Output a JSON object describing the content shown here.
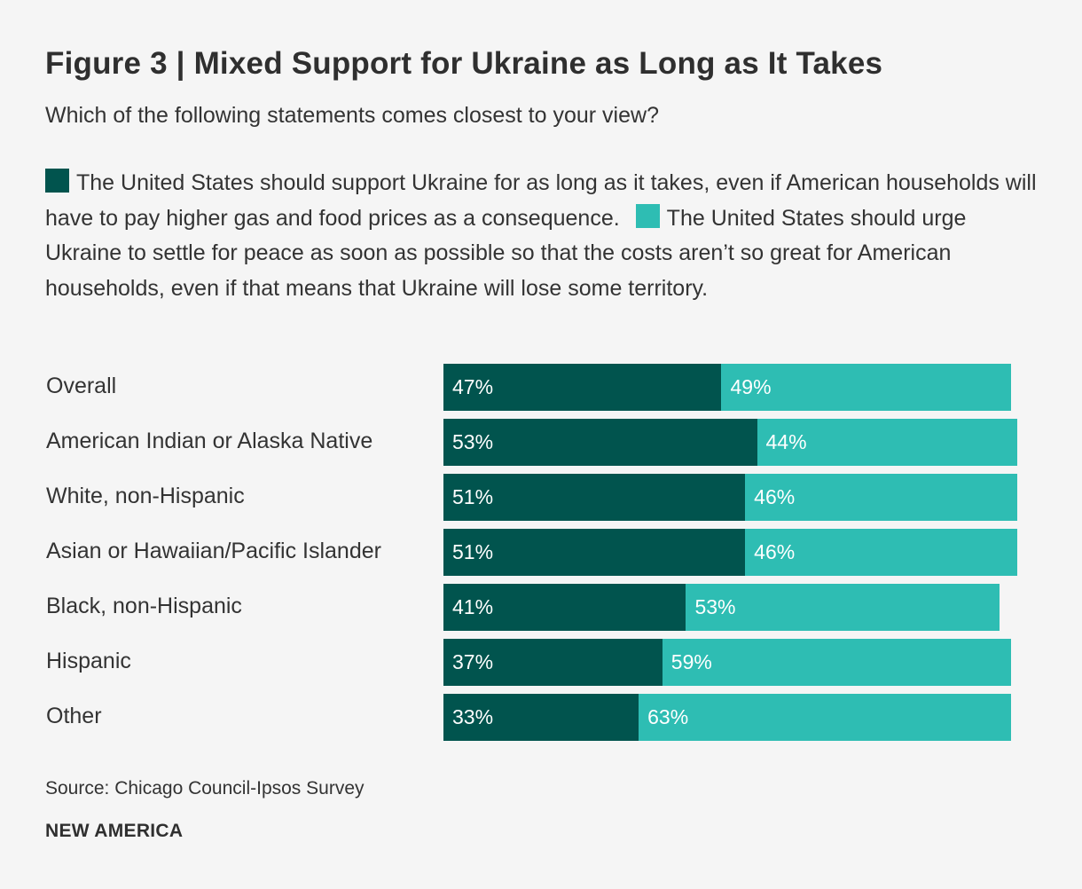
{
  "header": {
    "title": "Figure 3 | Mixed Support for Ukraine as Long as It Takes",
    "subtitle": "Which of the following statements comes closest to your view?"
  },
  "footer": {
    "source": "Source: Chicago Council-Ipsos Survey",
    "brand": "NEW AMERICA"
  },
  "colors": {
    "dark": "#01544e",
    "light": "#2ebdb3"
  },
  "chart_data": {
    "type": "bar",
    "orientation": "horizontal",
    "stacked": true,
    "title": "Figure 3 | Mixed Support for Ukraine as Long as It Takes",
    "subtitle": "Which of the following statements comes closest to your view?",
    "categories": [
      "Overall",
      "American Indian or Alaska Native",
      "White, non-Hispanic",
      "Asian or Hawaiian/Pacific Islander",
      "Black, non-Hispanic",
      "Hispanic",
      "Other"
    ],
    "series": [
      {
        "name": "The United States should support Ukraine for as long as it takes, even if American households will have to pay higher gas and food prices as a consequence.",
        "color": "#01544e",
        "values": [
          47,
          53,
          51,
          51,
          41,
          37,
          33
        ],
        "labels": [
          "47%",
          "53%",
          "51%",
          "51%",
          "41%",
          "37%",
          "33%"
        ]
      },
      {
        "name": "The United States should urge Ukraine to settle for peace as soon as possible so that the costs aren’t so great for American households, even if that means that Ukraine will lose some territory.",
        "color": "#2ebdb3",
        "values": [
          49,
          44,
          46,
          46,
          53,
          59,
          63
        ],
        "labels": [
          "49%",
          "44%",
          "46%",
          "46%",
          "53%",
          "59%",
          "63%"
        ]
      }
    ],
    "legend_position": "top",
    "xlim": [
      0,
      100
    ]
  }
}
